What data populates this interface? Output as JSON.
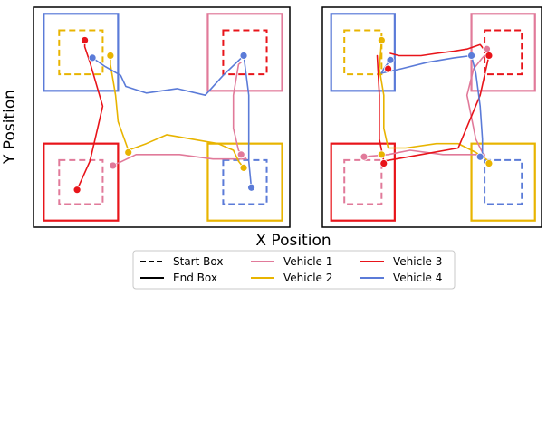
{
  "chart_data": [
    {
      "type": "line",
      "panel": "left",
      "xlabel": "X Position",
      "ylabel": "Y Position",
      "ticks": "none",
      "boxes": [
        {
          "corner": "top-left",
          "start_color": "#E8B400",
          "end_color": "#5B7BD8"
        },
        {
          "corner": "top-right",
          "start_color": "#E8141A",
          "end_color": "#E17A9A"
        },
        {
          "corner": "bottom-left",
          "start_color": "#E17A9A",
          "end_color": "#E8141A"
        },
        {
          "corner": "bottom-right",
          "start_color": "#5B7BD8",
          "end_color": "#E8B400"
        }
      ],
      "series": [
        {
          "name": "Vehicle 1",
          "color": "#E17A9A",
          "x": [
            0.31,
            0.4,
            0.57,
            0.7,
            0.83,
            0.8,
            0.78,
            0.78,
            0.8,
            0.81
          ],
          "y": [
            0.28,
            0.33,
            0.33,
            0.31,
            0.31,
            0.35,
            0.45,
            0.6,
            0.74,
            0.75
          ]
        },
        {
          "name": "Vehicle 2",
          "color": "#E8B400",
          "x": [
            0.3,
            0.3,
            0.32,
            0.33,
            0.37,
            0.44,
            0.52,
            0.72,
            0.78,
            0.8,
            0.82
          ],
          "y": [
            0.79,
            0.74,
            0.6,
            0.48,
            0.35,
            0.38,
            0.42,
            0.38,
            0.35,
            0.3,
            0.27
          ]
        },
        {
          "name": "Vehicle 3",
          "color": "#E8141A",
          "x": [
            0.2,
            0.2,
            0.22,
            0.27,
            0.25,
            0.22,
            0.17
          ],
          "y": [
            0.85,
            0.82,
            0.75,
            0.55,
            0.45,
            0.3,
            0.17
          ]
        },
        {
          "name": "Vehicle 4",
          "color": "#5B7BD8",
          "x": [
            0.23,
            0.28,
            0.34,
            0.36,
            0.44,
            0.56,
            0.67,
            0.74,
            0.82,
            0.84,
            0.84,
            0.84,
            0.85
          ],
          "y": [
            0.77,
            0.73,
            0.69,
            0.64,
            0.61,
            0.63,
            0.6,
            0.69,
            0.78,
            0.6,
            0.4,
            0.3,
            0.18
          ]
        }
      ],
      "markers": [
        {
          "color": "#E17A9A",
          "x": 0.31,
          "y": 0.28
        },
        {
          "color": "#E8B400",
          "x": 0.3,
          "y": 0.78
        },
        {
          "color": "#E8141A",
          "x": 0.2,
          "y": 0.85
        },
        {
          "color": "#5B7BD8",
          "x": 0.23,
          "y": 0.77
        },
        {
          "color": "#E8141A",
          "x": 0.17,
          "y": 0.17
        },
        {
          "color": "#E8B400",
          "x": 0.37,
          "y": 0.34
        },
        {
          "color": "#5B7BD8",
          "x": 0.82,
          "y": 0.78
        },
        {
          "color": "#E17A9A",
          "x": 0.81,
          "y": 0.33
        },
        {
          "color": "#E8B400",
          "x": 0.82,
          "y": 0.27
        },
        {
          "color": "#5B7BD8",
          "x": 0.85,
          "y": 0.18
        }
      ]
    },
    {
      "type": "line",
      "panel": "right",
      "xlabel": "X Position",
      "ylabel": "Y Position",
      "ticks": "none",
      "boxes": [
        {
          "corner": "top-left",
          "start_color": "#E8B400",
          "end_color": "#5B7BD8"
        },
        {
          "corner": "top-right",
          "start_color": "#E8141A",
          "end_color": "#E17A9A"
        },
        {
          "corner": "bottom-left",
          "start_color": "#E17A9A",
          "end_color": "#E8141A"
        },
        {
          "corner": "bottom-right",
          "start_color": "#5B7BD8",
          "end_color": "#E8B400"
        }
      ],
      "series": [
        {
          "name": "Vehicle 1",
          "color": "#E17A9A",
          "x": [
            0.19,
            0.3,
            0.4,
            0.55,
            0.7,
            0.74,
            0.7,
            0.66,
            0.69,
            0.73,
            0.76
          ],
          "y": [
            0.32,
            0.33,
            0.35,
            0.33,
            0.33,
            0.32,
            0.4,
            0.6,
            0.72,
            0.77,
            0.8
          ]
        },
        {
          "name": "Vehicle 2",
          "color": "#E8B400",
          "x": [
            0.27,
            0.26,
            0.28,
            0.28,
            0.3,
            0.38,
            0.52,
            0.62,
            0.7,
            0.76
          ],
          "y": [
            0.85,
            0.72,
            0.6,
            0.45,
            0.36,
            0.36,
            0.38,
            0.38,
            0.34,
            0.3
          ]
        },
        {
          "name": "Vehicle 3",
          "color": "#E8141A",
          "x": [
            0.31,
            0.35,
            0.38,
            0.45,
            0.52,
            0.6,
            0.66,
            0.72,
            0.76,
            0.72,
            0.62,
            0.45,
            0.28,
            0.26,
            0.26,
            0.25
          ],
          "y": [
            0.79,
            0.78,
            0.78,
            0.78,
            0.79,
            0.8,
            0.81,
            0.83,
            0.78,
            0.6,
            0.36,
            0.33,
            0.3,
            0.4,
            0.6,
            0.78
          ]
        },
        {
          "name": "Vehicle 4",
          "color": "#5B7BD8",
          "x": [
            0.31,
            0.28,
            0.27,
            0.36,
            0.48,
            0.6,
            0.68,
            0.7,
            0.72,
            0.73,
            0.73,
            0.72
          ],
          "y": [
            0.76,
            0.72,
            0.7,
            0.72,
            0.75,
            0.77,
            0.78,
            0.7,
            0.55,
            0.4,
            0.33,
            0.32
          ]
        }
      ],
      "markers": [
        {
          "color": "#E8B400",
          "x": 0.27,
          "y": 0.85
        },
        {
          "color": "#5B7BD8",
          "x": 0.31,
          "y": 0.76
        },
        {
          "color": "#E8141A",
          "x": 0.3,
          "y": 0.72
        },
        {
          "color": "#E17A9A",
          "x": 0.19,
          "y": 0.32
        },
        {
          "color": "#E8141A",
          "x": 0.28,
          "y": 0.29
        },
        {
          "color": "#E8B400",
          "x": 0.27,
          "y": 0.33
        },
        {
          "color": "#E17A9A",
          "x": 0.75,
          "y": 0.81
        },
        {
          "color": "#E8141A",
          "x": 0.76,
          "y": 0.78
        },
        {
          "color": "#5B7BD8",
          "x": 0.68,
          "y": 0.78
        },
        {
          "color": "#E8B400",
          "x": 0.76,
          "y": 0.29
        },
        {
          "color": "#5B7BD8",
          "x": 0.72,
          "y": 0.32
        }
      ]
    }
  ],
  "figure": {
    "xlabel": "X Position",
    "ylabel": "Y Position"
  },
  "legend": {
    "placement": "bottom-center",
    "columns": 3,
    "entries": [
      {
        "label": "Start Box",
        "style": "dashed",
        "color": "#000000"
      },
      {
        "label": "End Box",
        "style": "solid",
        "color": "#000000"
      },
      {
        "label": "Vehicle 1",
        "style": "solid",
        "color": "#E17A9A"
      },
      {
        "label": "Vehicle 2",
        "style": "solid",
        "color": "#E8B400"
      },
      {
        "label": "Vehicle 3",
        "style": "solid",
        "color": "#E8141A"
      },
      {
        "label": "Vehicle 4",
        "style": "solid",
        "color": "#5B7BD8"
      }
    ]
  }
}
